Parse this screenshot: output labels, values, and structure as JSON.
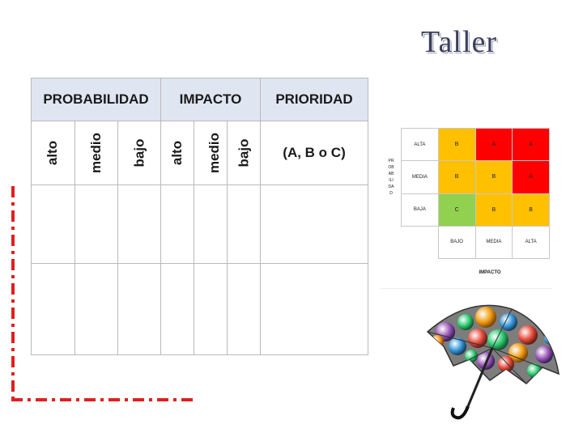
{
  "slide": {
    "title": "Taller"
  },
  "table": {
    "headers": {
      "probabilidad": "PROBABILIDAD",
      "impacto": "IMPACTO",
      "prioridad": "PRIORIDAD"
    },
    "sub_labels": {
      "prob": [
        "alto",
        "medio",
        "bajo"
      ],
      "imp": [
        "alto",
        "medio",
        "bajo"
      ],
      "prio_hint": "(A, B o C)"
    }
  },
  "matrix": {
    "y_axis": "PROBABILIDAD",
    "x_axis": "IMPACTO",
    "rows": [
      {
        "label": "ALTA",
        "cells": [
          "B",
          "A",
          "A"
        ]
      },
      {
        "label": "MEDIA",
        "cells": [
          "B",
          "B",
          "A"
        ]
      },
      {
        "label": "BAJA",
        "cells": [
          "C",
          "B",
          "B"
        ]
      }
    ],
    "cols": [
      "BAJO",
      "MEDIA",
      "ALTA"
    ],
    "colors": {
      "A": "#ff0000",
      "B": "#ffc000",
      "C": "#92d050"
    }
  },
  "accent_color": "#e02020"
}
